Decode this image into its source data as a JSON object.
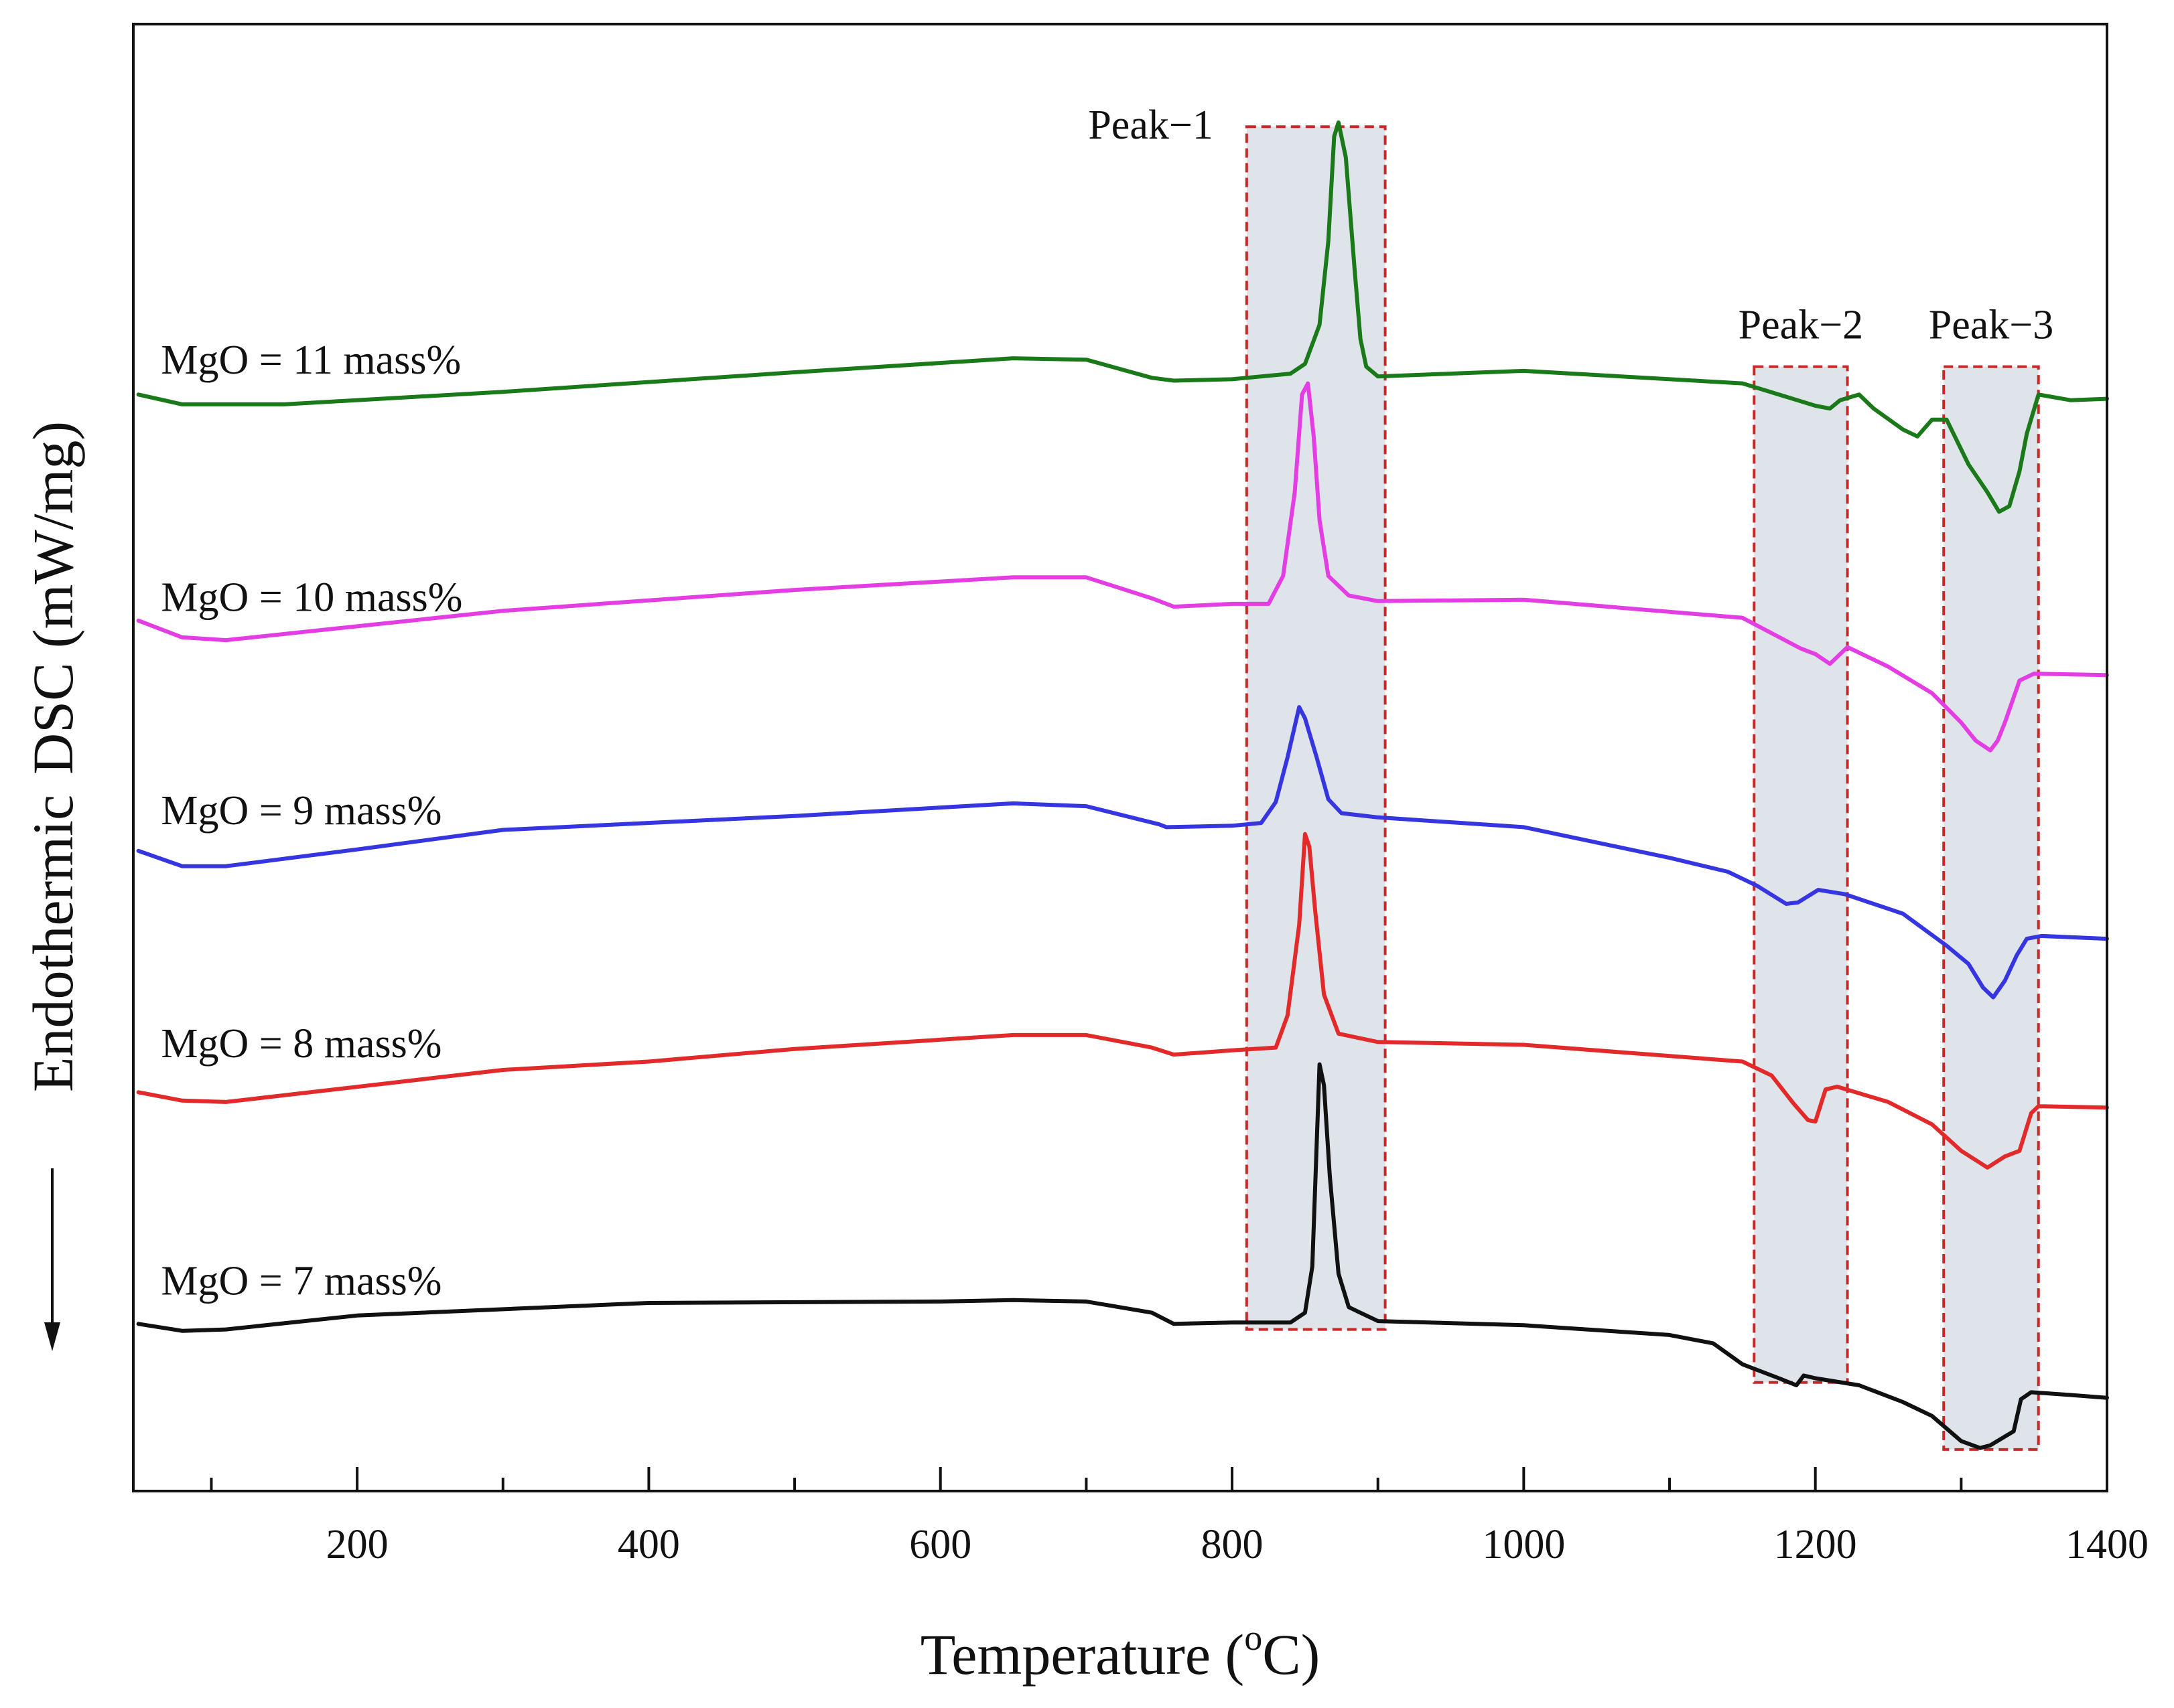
{
  "chart_data": {
    "type": "line",
    "title": "",
    "xlabel": "Temperature (",
    "xlabel_degree": "o",
    "xlabel_unit": "C)",
    "ylabel": "Endothermic DSC (mW/mg)",
    "ylabel_arrow_text": "Endothermic",
    "ylabel_main": "DSC (mW/mg)",
    "xlim": [
      50,
      1400
    ],
    "ylim": [
      0,
      1000
    ],
    "x_ticks": [
      200,
      400,
      600,
      800,
      1000,
      1200,
      1400
    ],
    "x_minor_ticks": [
      100,
      300,
      500,
      700,
      900,
      1100,
      1300
    ],
    "grid": false,
    "regions": [
      {
        "label": "Peak−1",
        "x_range": [
          810,
          905
        ],
        "y_range": [
          100,
          962
        ],
        "label_side": "left"
      },
      {
        "label": "Peak−2",
        "x_range": [
          1158,
          1222
        ],
        "y_range": [
          62,
          790
        ],
        "label_side": "top"
      },
      {
        "label": "Peak−3",
        "x_range": [
          1288,
          1353
        ],
        "y_range": [
          14,
          790
        ],
        "label_side": "top"
      }
    ],
    "series": [
      {
        "name": "MgO = 11 mass%",
        "color": "#1a7a1a",
        "label_x": 60,
        "label_y": 785,
        "points": [
          [
            50,
            770
          ],
          [
            80,
            763
          ],
          [
            150,
            763
          ],
          [
            300,
            772
          ],
          [
            500,
            786
          ],
          [
            650,
            796
          ],
          [
            700,
            795
          ],
          [
            745,
            782
          ],
          [
            760,
            780
          ],
          [
            800,
            781
          ],
          [
            840,
            785
          ],
          [
            850,
            792
          ],
          [
            860,
            820
          ],
          [
            866,
            880
          ],
          [
            870,
            955
          ],
          [
            873,
            965
          ],
          [
            878,
            940
          ],
          [
            884,
            860
          ],
          [
            888,
            810
          ],
          [
            892,
            790
          ],
          [
            900,
            783
          ],
          [
            1000,
            787
          ],
          [
            1150,
            778
          ],
          [
            1200,
            762
          ],
          [
            1210,
            760
          ],
          [
            1217,
            766
          ],
          [
            1230,
            770
          ],
          [
            1240,
            760
          ],
          [
            1260,
            745
          ],
          [
            1270,
            740
          ],
          [
            1280,
            752
          ],
          [
            1290,
            752
          ],
          [
            1305,
            720
          ],
          [
            1318,
            700
          ],
          [
            1326,
            686
          ],
          [
            1333,
            690
          ],
          [
            1340,
            715
          ],
          [
            1345,
            742
          ],
          [
            1353,
            770
          ],
          [
            1375,
            766
          ],
          [
            1400,
            767
          ]
        ]
      },
      {
        "name": "MgO = 10 mass%",
        "color": "#e43de4",
        "label_x": 60,
        "label_y": 615,
        "points": [
          [
            50,
            608
          ],
          [
            80,
            596
          ],
          [
            110,
            594
          ],
          [
            300,
            615
          ],
          [
            500,
            630
          ],
          [
            650,
            639
          ],
          [
            700,
            639
          ],
          [
            745,
            624
          ],
          [
            760,
            618
          ],
          [
            800,
            620
          ],
          [
            825,
            620
          ],
          [
            835,
            640
          ],
          [
            843,
            700
          ],
          [
            848,
            770
          ],
          [
            852,
            778
          ],
          [
            856,
            740
          ],
          [
            860,
            680
          ],
          [
            866,
            640
          ],
          [
            880,
            626
          ],
          [
            900,
            622
          ],
          [
            1000,
            623
          ],
          [
            1150,
            610
          ],
          [
            1190,
            588
          ],
          [
            1200,
            584
          ],
          [
            1210,
            577
          ],
          [
            1222,
            589
          ],
          [
            1250,
            575
          ],
          [
            1280,
            556
          ],
          [
            1300,
            535
          ],
          [
            1310,
            522
          ],
          [
            1320,
            515
          ],
          [
            1325,
            522
          ],
          [
            1330,
            535
          ],
          [
            1340,
            565
          ],
          [
            1350,
            570
          ],
          [
            1400,
            569
          ]
        ]
      },
      {
        "name": "MgO = 9 mass%",
        "color": "#3636e0",
        "label_x": 60,
        "label_y": 462,
        "points": [
          [
            50,
            443
          ],
          [
            80,
            432
          ],
          [
            110,
            432
          ],
          [
            200,
            444
          ],
          [
            300,
            458
          ],
          [
            500,
            468
          ],
          [
            650,
            477
          ],
          [
            700,
            475
          ],
          [
            750,
            462
          ],
          [
            755,
            460
          ],
          [
            800,
            461
          ],
          [
            820,
            463
          ],
          [
            830,
            478
          ],
          [
            838,
            510
          ],
          [
            846,
            546
          ],
          [
            850,
            538
          ],
          [
            858,
            510
          ],
          [
            866,
            480
          ],
          [
            875,
            470
          ],
          [
            900,
            467
          ],
          [
            1000,
            460
          ],
          [
            1100,
            438
          ],
          [
            1140,
            428
          ],
          [
            1160,
            418
          ],
          [
            1180,
            405
          ],
          [
            1188,
            406
          ],
          [
            1202,
            415
          ],
          [
            1220,
            412
          ],
          [
            1260,
            398
          ],
          [
            1290,
            375
          ],
          [
            1305,
            362
          ],
          [
            1315,
            345
          ],
          [
            1322,
            338
          ],
          [
            1330,
            350
          ],
          [
            1338,
            368
          ],
          [
            1345,
            380
          ],
          [
            1355,
            382
          ],
          [
            1400,
            380
          ]
        ]
      },
      {
        "name": "MgO = 8 mass%",
        "color": "#e22a2a",
        "label_x": 60,
        "label_y": 295,
        "points": [
          [
            50,
            270
          ],
          [
            80,
            264
          ],
          [
            110,
            263
          ],
          [
            300,
            286
          ],
          [
            400,
            292
          ],
          [
            500,
            301
          ],
          [
            650,
            311
          ],
          [
            700,
            311
          ],
          [
            745,
            302
          ],
          [
            760,
            297
          ],
          [
            800,
            300
          ],
          [
            830,
            302
          ],
          [
            838,
            325
          ],
          [
            846,
            390
          ],
          [
            850,
            455
          ],
          [
            853,
            446
          ],
          [
            857,
            400
          ],
          [
            863,
            340
          ],
          [
            873,
            312
          ],
          [
            900,
            306
          ],
          [
            1000,
            304
          ],
          [
            1150,
            292
          ],
          [
            1170,
            282
          ],
          [
            1185,
            262
          ],
          [
            1195,
            250
          ],
          [
            1200,
            249
          ],
          [
            1207,
            272
          ],
          [
            1215,
            274
          ],
          [
            1250,
            263
          ],
          [
            1280,
            247
          ],
          [
            1300,
            228
          ],
          [
            1312,
            220
          ],
          [
            1318,
            216
          ],
          [
            1330,
            224
          ],
          [
            1340,
            228
          ],
          [
            1348,
            255
          ],
          [
            1353,
            260
          ],
          [
            1400,
            259
          ]
        ]
      },
      {
        "name": "MgO = 7 mass%",
        "color": "#111111",
        "label_x": 60,
        "label_y": 125,
        "points": [
          [
            50,
            104
          ],
          [
            80,
            99
          ],
          [
            110,
            100
          ],
          [
            200,
            110
          ],
          [
            400,
            119
          ],
          [
            600,
            120
          ],
          [
            650,
            121
          ],
          [
            700,
            120
          ],
          [
            745,
            112
          ],
          [
            760,
            104
          ],
          [
            800,
            105
          ],
          [
            840,
            105
          ],
          [
            850,
            112
          ],
          [
            855,
            145
          ],
          [
            860,
            290
          ],
          [
            863,
            275
          ],
          [
            867,
            210
          ],
          [
            873,
            140
          ],
          [
            880,
            116
          ],
          [
            900,
            106
          ],
          [
            1000,
            103
          ],
          [
            1100,
            96
          ],
          [
            1130,
            90
          ],
          [
            1150,
            75
          ],
          [
            1175,
            65
          ],
          [
            1187,
            60
          ],
          [
            1192,
            67
          ],
          [
            1200,
            65
          ],
          [
            1230,
            60
          ],
          [
            1260,
            48
          ],
          [
            1280,
            38
          ],
          [
            1300,
            20
          ],
          [
            1313,
            15
          ],
          [
            1320,
            17
          ],
          [
            1336,
            27
          ],
          [
            1341,
            50
          ],
          [
            1348,
            55
          ],
          [
            1375,
            53
          ],
          [
            1400,
            51
          ]
        ]
      }
    ]
  }
}
